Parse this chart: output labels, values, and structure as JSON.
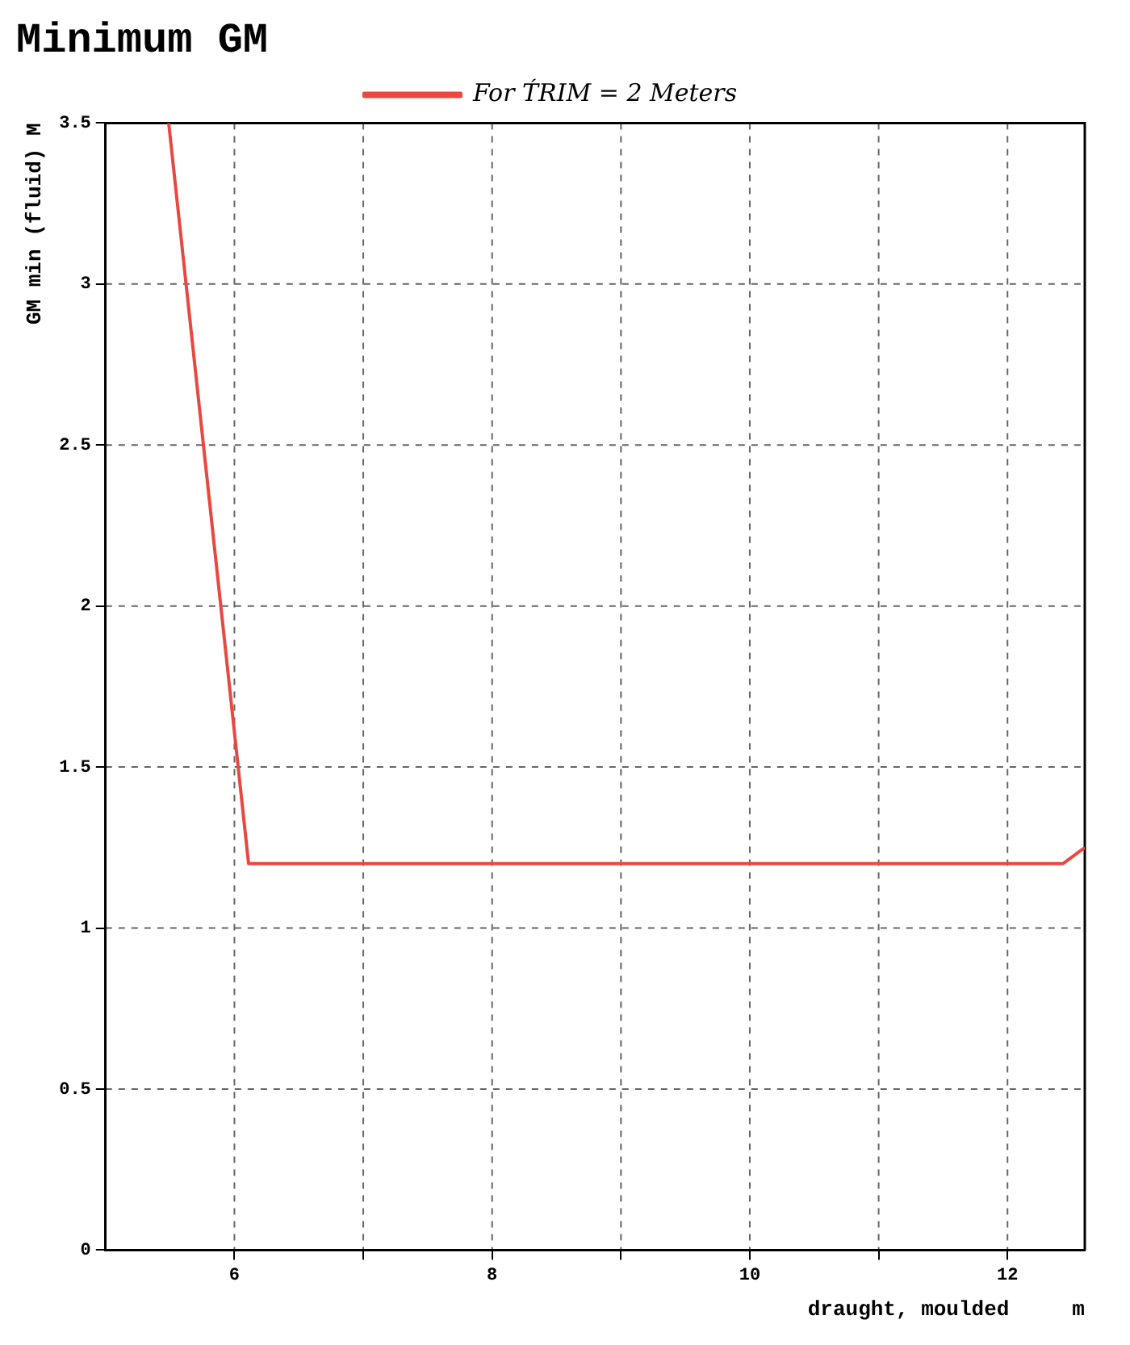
{
  "chart_data": {
    "type": "line",
    "title": "Minimum GM",
    "xlabel": "draught, moulded     m",
    "ylabel": "GM min (fluid) M",
    "x": [
      5.49,
      6.11,
      12.43,
      12.6
    ],
    "series": [
      {
        "name": "For T́RIM = 2 Meters",
        "color": "#e8483f",
        "values": [
          3.5,
          1.2,
          1.2,
          1.25
        ]
      }
    ],
    "xlim": [
      5,
      12.6
    ],
    "xticks": [
      6,
      {
        "value": 7,
        "label": null
      },
      8,
      {
        "value": 9,
        "label": null
      },
      10,
      {
        "value": 11,
        "label": null
      },
      12
    ],
    "ylim": [
      0,
      3.5
    ],
    "yticks": [
      0,
      0.5,
      1,
      1.5,
      2,
      2.5,
      3,
      3.5
    ],
    "grid": true,
    "legend": "top",
    "marker": "none",
    "line_style": "solid"
  }
}
